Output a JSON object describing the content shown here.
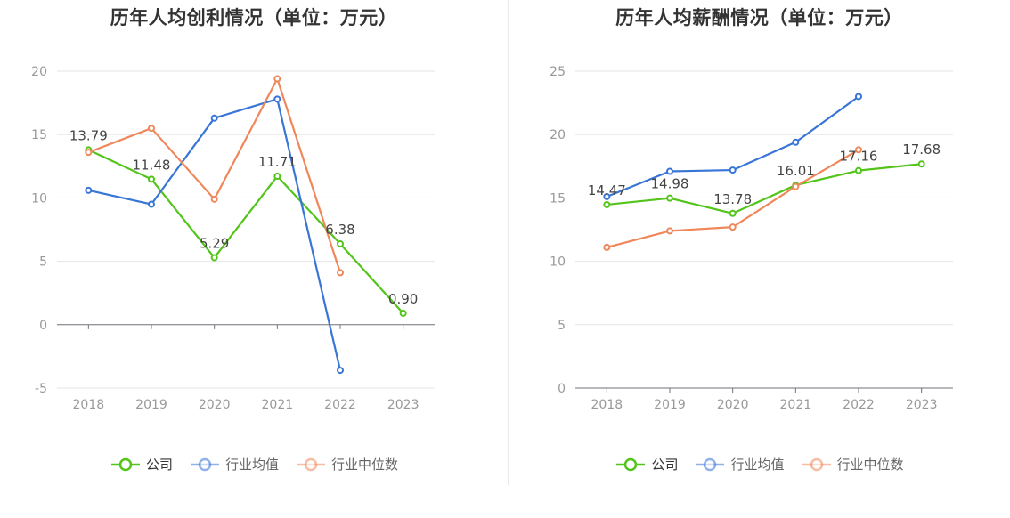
{
  "chart_data": [
    {
      "type": "line",
      "title": "历年人均创利情况（单位：万元）",
      "categories": [
        "2018",
        "2019",
        "2020",
        "2021",
        "2022",
        "2023"
      ],
      "ylim": [
        -5,
        20
      ],
      "yticks": [
        -5,
        0,
        5,
        10,
        15,
        20
      ],
      "ytick_labels": [
        "-5",
        "0",
        "5",
        "10",
        "15",
        "20"
      ],
      "grid": true,
      "legend_position": "bottom",
      "series": [
        {
          "name": "公司",
          "color": "#52c41a",
          "labeled": true,
          "values": [
            13.79,
            11.48,
            5.29,
            11.71,
            6.38,
            0.9
          ],
          "labels": [
            "13.79",
            "11.48",
            "5.29",
            "11.71",
            "6.38",
            "0.90"
          ]
        },
        {
          "name": "行业均值",
          "color": "#3875d7",
          "labeled": false,
          "values": [
            10.6,
            9.5,
            16.3,
            17.8,
            -3.6,
            null
          ]
        },
        {
          "name": "行业中位数",
          "color": "#f0875a",
          "labeled": false,
          "values": [
            13.6,
            15.5,
            9.9,
            19.4,
            4.1,
            null
          ]
        }
      ]
    },
    {
      "type": "line",
      "title": "历年人均薪酬情况（单位：万元）",
      "categories": [
        "2018",
        "2019",
        "2020",
        "2021",
        "2022",
        "2023"
      ],
      "ylim": [
        0,
        25
      ],
      "yticks": [
        0,
        5,
        10,
        15,
        20,
        25
      ],
      "ytick_labels": [
        "0",
        "5",
        "10",
        "15",
        "20",
        "25"
      ],
      "grid": true,
      "legend_position": "bottom",
      "series": [
        {
          "name": "公司",
          "color": "#52c41a",
          "labeled": true,
          "values": [
            14.47,
            14.98,
            13.78,
            16.01,
            17.16,
            17.68
          ],
          "labels": [
            "14.47",
            "14.98",
            "13.78",
            "16.01",
            "17.16",
            "17.68"
          ]
        },
        {
          "name": "行业均值",
          "color": "#3875d7",
          "labeled": false,
          "values": [
            15.1,
            17.1,
            17.2,
            19.4,
            23.0,
            null
          ]
        },
        {
          "name": "行业中位数",
          "color": "#f0875a",
          "labeled": false,
          "values": [
            11.1,
            12.4,
            12.7,
            15.9,
            18.8,
            null
          ]
        }
      ]
    }
  ]
}
